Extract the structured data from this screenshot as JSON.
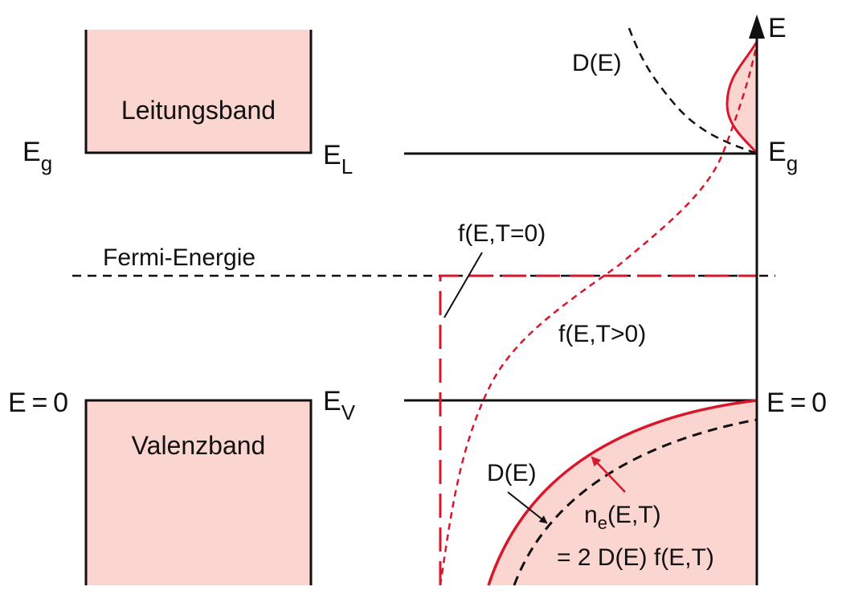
{
  "labels": {
    "conduction_band": "Leitungsband",
    "valence_band": "Valenzband",
    "fermi_energy": "Fermi-Energie",
    "left_eg_main": "E",
    "left_eg_sub": "g",
    "el_main": "E",
    "el_sub": "L",
    "ev_main": "E",
    "ev_sub": "V",
    "left_e0": "E = 0",
    "axis_e": "E",
    "right_eg_main": "E",
    "right_eg_sub": "g",
    "right_e0": "E = 0",
    "dos_top": "D(E)",
    "fermi_t0": "f(E,T=0)",
    "fermi_tpos": "f(E,T>0)",
    "dos_bottom": "D(E)",
    "ne_main": "n",
    "ne_sub": "e",
    "ne_rest": "(E,T)",
    "ne_formula": "= 2 D(E) f(E,T)"
  },
  "colors": {
    "band_fill": "#fbd5cf",
    "line": "#111111",
    "red": "#d9172c",
    "red_fill": "#fbd5cf"
  }
}
